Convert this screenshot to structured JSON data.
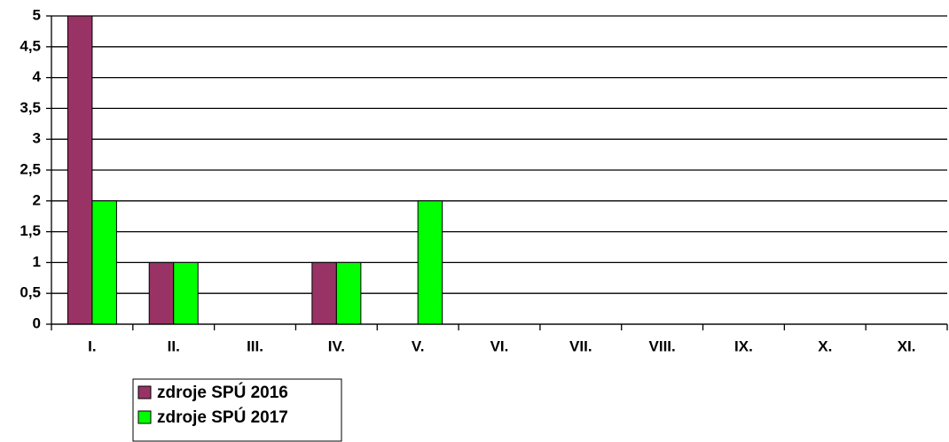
{
  "chart_data": {
    "type": "bar",
    "categories": [
      "I.",
      "II.",
      "III.",
      "IV.",
      "V.",
      "VI.",
      "VII.",
      "VIII.",
      "IX.",
      "X.",
      "XI."
    ],
    "series": [
      {
        "name": "zdroje SPÚ 2016",
        "color": "#993366",
        "values": [
          5,
          1,
          0,
          1,
          0,
          0,
          0,
          0,
          0,
          0,
          0
        ]
      },
      {
        "name": "zdroje SPÚ 2017",
        "color": "#00ff00",
        "values": [
          2,
          1,
          0,
          1,
          2,
          0,
          0,
          0,
          0,
          0,
          0
        ]
      }
    ],
    "ylim": [
      0,
      5
    ],
    "yticks": [
      0,
      {
        "value": 0.5,
        "label": "0,5"
      },
      1,
      {
        "value": 1.5,
        "label": "1,5"
      },
      2,
      {
        "value": 2.5,
        "label": "2,5"
      },
      3,
      {
        "value": 3.5,
        "label": "3,5"
      },
      4,
      {
        "value": 4.5,
        "label": "4,5"
      },
      5
    ],
    "grid": true
  }
}
